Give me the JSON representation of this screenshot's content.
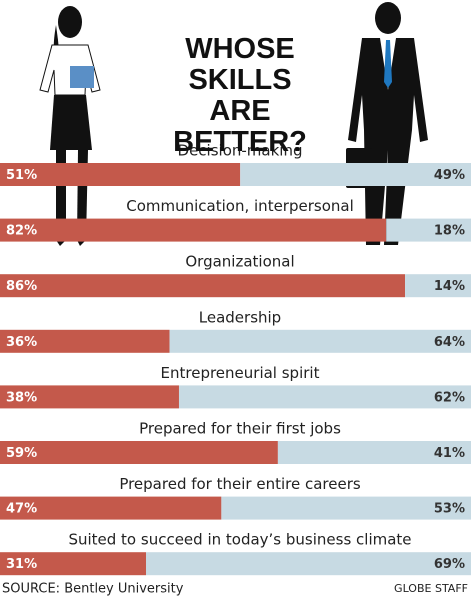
{
  "chart_data": {
    "type": "bar",
    "orientation": "horizontal",
    "stacked": true,
    "title": "WHOSE SKILLS ARE BETTER?",
    "categories": [
      "Decision-making",
      "Communication, interpersonal",
      "Organizational",
      "Leadership",
      "Entrepreneurial spirit",
      "Prepared for their first jobs",
      "Prepared for their entire careers",
      "Suited to succeed in today’s business climate"
    ],
    "series": [
      {
        "color": "#c4594b",
        "values": [
          51,
          82,
          86,
          36,
          38,
          59,
          47,
          31
        ],
        "value_labels": [
          "51%",
          "82%",
          "86%",
          "36%",
          "38%",
          "59%",
          "47%",
          "31%"
        ]
      },
      {
        "color": "#c7dae3",
        "values": [
          49,
          18,
          14,
          64,
          62,
          41,
          53,
          69
        ],
        "value_labels": [
          "49%",
          "18%",
          "14%",
          "64%",
          "62%",
          "41%",
          "53%",
          "69%"
        ]
      }
    ],
    "xlim": [
      0,
      100
    ],
    "source": "SOURCE: Bentley University",
    "credit": "GLOBE STAFF"
  }
}
